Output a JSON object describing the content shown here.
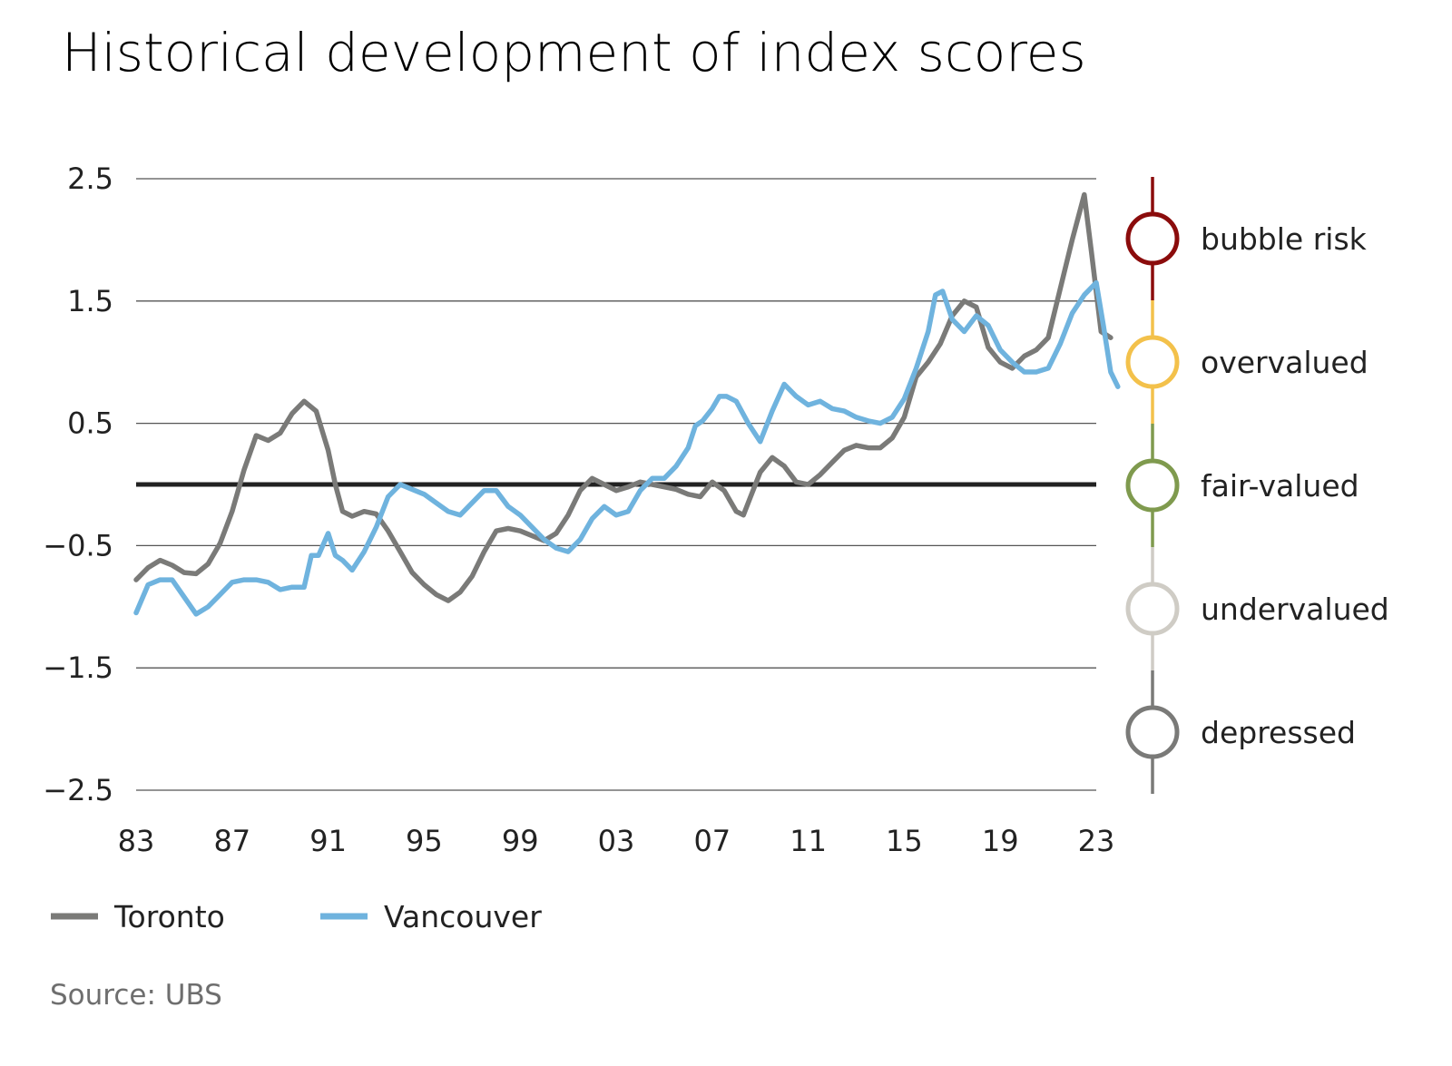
{
  "chart_data": {
    "type": "line",
    "title": "Historical development of index scores",
    "source": "Source: UBS",
    "xlabel": "",
    "ylabel": "",
    "xlim": [
      1983,
      2023
    ],
    "ylim": [
      -2.5,
      2.5
    ],
    "x_ticks": [
      1983,
      1987,
      1991,
      1995,
      1999,
      2003,
      2007,
      2011,
      2015,
      2019,
      2023
    ],
    "x_tick_labels": [
      "83",
      "87",
      "91",
      "95",
      "99",
      "03",
      "07",
      "11",
      "15",
      "19",
      "23"
    ],
    "y_ticks": [
      2.5,
      1.5,
      0.5,
      -0.5,
      -1.5,
      -2.5
    ],
    "y_tick_labels": [
      "2.5",
      "1.5",
      "0.5",
      "−0.5",
      "−1.5",
      "−2.5"
    ],
    "grid": true,
    "zero_line": true,
    "legend_position": "bottom-left",
    "series": [
      {
        "name": "Toronto",
        "color": "#7a7a78",
        "points": [
          [
            1983.0,
            -0.78
          ],
          [
            1983.5,
            -0.68
          ],
          [
            1984.0,
            -0.62
          ],
          [
            1984.5,
            -0.66
          ],
          [
            1985.0,
            -0.72
          ],
          [
            1985.5,
            -0.73
          ],
          [
            1986.0,
            -0.65
          ],
          [
            1986.5,
            -0.48
          ],
          [
            1987.0,
            -0.22
          ],
          [
            1987.5,
            0.12
          ],
          [
            1988.0,
            0.4
          ],
          [
            1988.5,
            0.36
          ],
          [
            1989.0,
            0.42
          ],
          [
            1989.5,
            0.58
          ],
          [
            1990.0,
            0.68
          ],
          [
            1990.5,
            0.6
          ],
          [
            1991.0,
            0.28
          ],
          [
            1991.3,
            0.0
          ],
          [
            1991.6,
            -0.22
          ],
          [
            1992.0,
            -0.26
          ],
          [
            1992.5,
            -0.22
          ],
          [
            1993.0,
            -0.24
          ],
          [
            1993.5,
            -0.38
          ],
          [
            1994.0,
            -0.55
          ],
          [
            1994.5,
            -0.72
          ],
          [
            1995.0,
            -0.82
          ],
          [
            1995.5,
            -0.9
          ],
          [
            1996.0,
            -0.95
          ],
          [
            1996.5,
            -0.88
          ],
          [
            1997.0,
            -0.75
          ],
          [
            1997.5,
            -0.55
          ],
          [
            1998.0,
            -0.38
          ],
          [
            1998.5,
            -0.36
          ],
          [
            1999.0,
            -0.38
          ],
          [
            1999.5,
            -0.42
          ],
          [
            2000.0,
            -0.46
          ],
          [
            2000.5,
            -0.4
          ],
          [
            2001.0,
            -0.25
          ],
          [
            2001.5,
            -0.05
          ],
          [
            2002.0,
            0.05
          ],
          [
            2002.5,
            0.0
          ],
          [
            2003.0,
            -0.05
          ],
          [
            2003.5,
            -0.02
          ],
          [
            2004.0,
            0.02
          ],
          [
            2004.5,
            0.0
          ],
          [
            2005.0,
            -0.02
          ],
          [
            2005.5,
            -0.04
          ],
          [
            2006.0,
            -0.08
          ],
          [
            2006.5,
            -0.1
          ],
          [
            2007.0,
            0.02
          ],
          [
            2007.5,
            -0.05
          ],
          [
            2008.0,
            -0.22
          ],
          [
            2008.3,
            -0.25
          ],
          [
            2008.6,
            -0.1
          ],
          [
            2009.0,
            0.1
          ],
          [
            2009.5,
            0.22
          ],
          [
            2010.0,
            0.15
          ],
          [
            2010.5,
            0.02
          ],
          [
            2011.0,
            0.0
          ],
          [
            2011.5,
            0.08
          ],
          [
            2012.0,
            0.18
          ],
          [
            2012.5,
            0.28
          ],
          [
            2013.0,
            0.32
          ],
          [
            2013.5,
            0.3
          ],
          [
            2014.0,
            0.3
          ],
          [
            2014.5,
            0.38
          ],
          [
            2015.0,
            0.55
          ],
          [
            2015.5,
            0.88
          ],
          [
            2016.0,
            1.0
          ],
          [
            2016.5,
            1.15
          ],
          [
            2017.0,
            1.38
          ],
          [
            2017.5,
            1.5
          ],
          [
            2018.0,
            1.45
          ],
          [
            2018.5,
            1.12
          ],
          [
            2019.0,
            1.0
          ],
          [
            2019.5,
            0.95
          ],
          [
            2020.0,
            1.05
          ],
          [
            2020.5,
            1.1
          ],
          [
            2021.0,
            1.2
          ],
          [
            2021.5,
            1.6
          ],
          [
            2022.0,
            2.0
          ],
          [
            2022.5,
            2.37
          ],
          [
            2022.8,
            1.9
          ],
          [
            2023.2,
            1.25
          ],
          [
            2023.6,
            1.2
          ]
        ]
      },
      {
        "name": "Vancouver",
        "color": "#6fb3de",
        "points": [
          [
            1983.0,
            -1.05
          ],
          [
            1983.5,
            -0.82
          ],
          [
            1984.0,
            -0.78
          ],
          [
            1984.5,
            -0.78
          ],
          [
            1985.0,
            -0.92
          ],
          [
            1985.5,
            -1.06
          ],
          [
            1986.0,
            -1.0
          ],
          [
            1986.5,
            -0.9
          ],
          [
            1987.0,
            -0.8
          ],
          [
            1987.5,
            -0.78
          ],
          [
            1988.0,
            -0.78
          ],
          [
            1988.5,
            -0.8
          ],
          [
            1989.0,
            -0.86
          ],
          [
            1989.5,
            -0.84
          ],
          [
            1990.0,
            -0.84
          ],
          [
            1990.3,
            -0.58
          ],
          [
            1990.6,
            -0.58
          ],
          [
            1991.0,
            -0.4
          ],
          [
            1991.3,
            -0.58
          ],
          [
            1991.6,
            -0.62
          ],
          [
            1992.0,
            -0.7
          ],
          [
            1992.5,
            -0.55
          ],
          [
            1993.0,
            -0.35
          ],
          [
            1993.5,
            -0.1
          ],
          [
            1994.0,
            0.0
          ],
          [
            1994.5,
            -0.04
          ],
          [
            1995.0,
            -0.08
          ],
          [
            1995.5,
            -0.15
          ],
          [
            1996.0,
            -0.22
          ],
          [
            1996.5,
            -0.25
          ],
          [
            1997.0,
            -0.15
          ],
          [
            1997.5,
            -0.05
          ],
          [
            1998.0,
            -0.05
          ],
          [
            1998.5,
            -0.18
          ],
          [
            1999.0,
            -0.25
          ],
          [
            1999.5,
            -0.35
          ],
          [
            2000.0,
            -0.45
          ],
          [
            2000.5,
            -0.52
          ],
          [
            2001.0,
            -0.55
          ],
          [
            2001.5,
            -0.45
          ],
          [
            2002.0,
            -0.28
          ],
          [
            2002.5,
            -0.18
          ],
          [
            2003.0,
            -0.25
          ],
          [
            2003.5,
            -0.22
          ],
          [
            2004.0,
            -0.05
          ],
          [
            2004.5,
            0.05
          ],
          [
            2005.0,
            0.05
          ],
          [
            2005.5,
            0.15
          ],
          [
            2006.0,
            0.3
          ],
          [
            2006.3,
            0.48
          ],
          [
            2006.6,
            0.52
          ],
          [
            2007.0,
            0.62
          ],
          [
            2007.3,
            0.72
          ],
          [
            2007.6,
            0.72
          ],
          [
            2008.0,
            0.68
          ],
          [
            2008.5,
            0.5
          ],
          [
            2009.0,
            0.35
          ],
          [
            2009.5,
            0.6
          ],
          [
            2010.0,
            0.82
          ],
          [
            2010.5,
            0.72
          ],
          [
            2011.0,
            0.65
          ],
          [
            2011.5,
            0.68
          ],
          [
            2012.0,
            0.62
          ],
          [
            2012.5,
            0.6
          ],
          [
            2013.0,
            0.55
          ],
          [
            2013.5,
            0.52
          ],
          [
            2014.0,
            0.5
          ],
          [
            2014.5,
            0.55
          ],
          [
            2015.0,
            0.7
          ],
          [
            2015.5,
            0.95
          ],
          [
            2016.0,
            1.25
          ],
          [
            2016.3,
            1.55
          ],
          [
            2016.6,
            1.58
          ],
          [
            2017.0,
            1.35
          ],
          [
            2017.5,
            1.25
          ],
          [
            2018.0,
            1.38
          ],
          [
            2018.5,
            1.3
          ],
          [
            2019.0,
            1.1
          ],
          [
            2019.5,
            1.0
          ],
          [
            2020.0,
            0.92
          ],
          [
            2020.5,
            0.92
          ],
          [
            2021.0,
            0.95
          ],
          [
            2021.5,
            1.15
          ],
          [
            2022.0,
            1.4
          ],
          [
            2022.5,
            1.55
          ],
          [
            2023.0,
            1.65
          ],
          [
            2023.3,
            1.3
          ],
          [
            2023.6,
            0.92
          ],
          [
            2023.9,
            0.8
          ]
        ]
      }
    ],
    "valuation_scale": [
      {
        "label": "bubble risk",
        "color": "#8b0c0c"
      },
      {
        "label": "overvalued",
        "color": "#f3c14b"
      },
      {
        "label": "fair-valued",
        "color": "#7f9a4e"
      },
      {
        "label": "undervalued",
        "color": "#cfccc5"
      },
      {
        "label": "depressed",
        "color": "#7a7a78"
      }
    ]
  }
}
